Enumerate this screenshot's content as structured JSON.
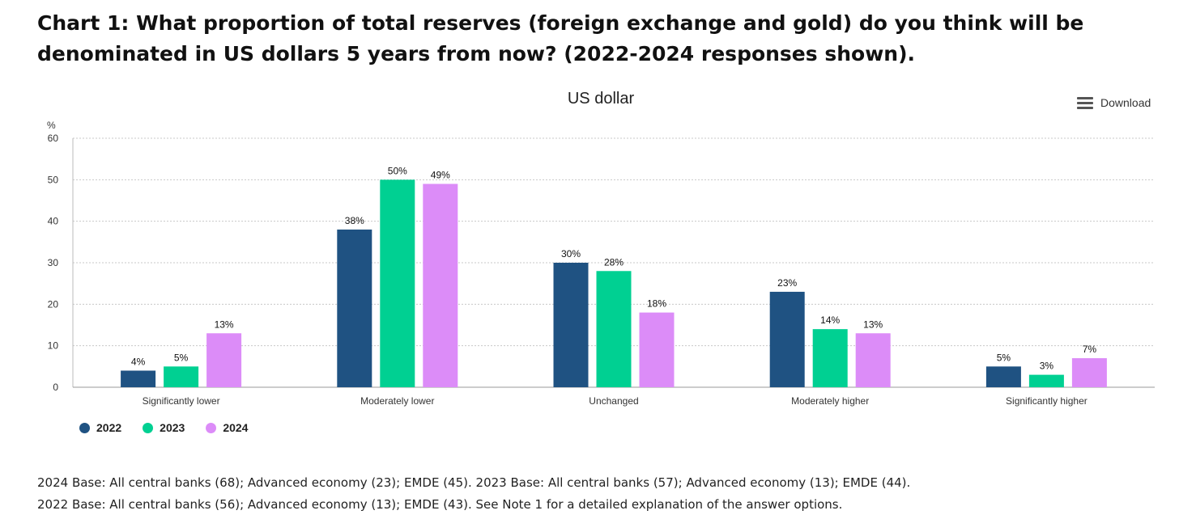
{
  "page_title": "Chart 1: What proportion of total reserves (foreign exchange and gold) do you think will be denominated in US dollars 5 years from now? (2022-2024 responses shown).",
  "download_label": "Download",
  "notes": [
    "2024 Base: All central banks (68); Advanced economy (23); EMDE (45). 2023 Base: All central banks (57); Advanced economy (13); EMDE (44).",
    "2022 Base: All central banks (56); Advanced economy (13); EMDE (43). See Note 1 for a detailed explanation of the answer options."
  ],
  "chart_data": {
    "type": "bar",
    "title": "US dollar",
    "ylabel": "%",
    "ylim": [
      0,
      60
    ],
    "yticks": [
      0,
      10,
      20,
      30,
      40,
      50,
      60
    ],
    "grid": true,
    "legend_position": "bottom-left",
    "categories": [
      "Significantly lower",
      "Moderately lower",
      "Unchanged",
      "Moderately higher",
      "Significantly higher"
    ],
    "series": [
      {
        "name": "2022",
        "color": "#1f5282",
        "values": [
          4,
          38,
          30,
          23,
          5
        ],
        "labels": [
          "4%",
          "38%",
          "30%",
          "23%",
          "5%"
        ]
      },
      {
        "name": "2023",
        "color": "#00d092",
        "values": [
          5,
          50,
          28,
          14,
          3
        ],
        "labels": [
          "5%",
          "50%",
          "28%",
          "14%",
          "3%"
        ]
      },
      {
        "name": "2024",
        "color": "#dc8cf8",
        "values": [
          13,
          49,
          18,
          13,
          7
        ],
        "labels": [
          "13%",
          "49%",
          "18%",
          "13%",
          "7%"
        ]
      }
    ]
  }
}
